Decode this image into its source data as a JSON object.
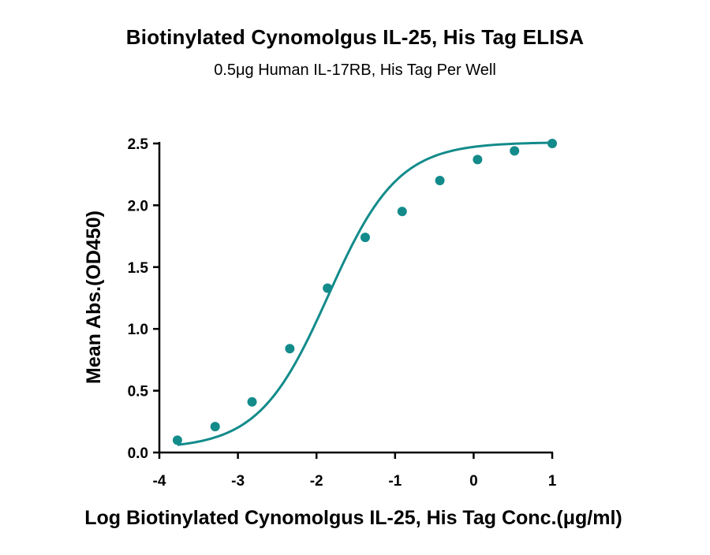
{
  "chart_data": {
    "type": "scatter",
    "title": "Biotinylated Cynomolgus IL-25, His Tag ELISA",
    "subtitle": "0.5μg Human IL-17RB, His Tag Per Well",
    "xlabel": "Log Biotinylated Cynomolgus IL-25, His Tag Conc.(μg/ml)",
    "ylabel": "Mean Abs.(OD450)",
    "xlim": [
      -4,
      1
    ],
    "ylim": [
      0,
      2.5
    ],
    "xticks": [
      "-4",
      "-3",
      "-2",
      "-1",
      "0",
      "1"
    ],
    "yticks": [
      "0.0",
      "0.5",
      "1.0",
      "1.5",
      "2.0",
      "2.5"
    ],
    "grid": false,
    "color": "#138b8b",
    "series": [
      {
        "x": [
          -3.77,
          -3.29,
          -2.82,
          -2.34,
          -1.86,
          -1.38,
          -0.91,
          -0.43,
          0.05,
          0.52,
          1.0
        ],
        "values": [
          0.1,
          0.21,
          0.41,
          0.84,
          1.33,
          1.74,
          1.95,
          2.2,
          2.37,
          2.44,
          2.5
        ]
      }
    ],
    "fit": {
      "model": "4PL",
      "bottom": 0.03,
      "top": 2.51,
      "log_ec50": -1.85,
      "hill_slope": 0.98,
      "x_range": [
        -3.77,
        1.0
      ]
    }
  }
}
